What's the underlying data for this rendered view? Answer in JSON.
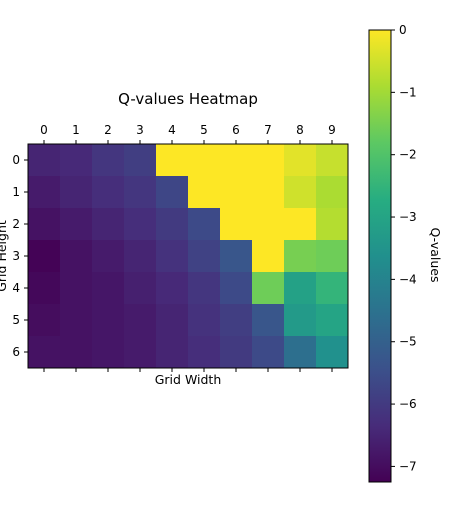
{
  "chart_data": {
    "type": "heatmap",
    "title": "Q-values Heatmap",
    "xlabel": "Grid Width",
    "ylabel": "Grid Height",
    "colorbar_label": "Q-values",
    "colormap": "viridis",
    "x_ticks": [
      "0",
      "1",
      "2",
      "3",
      "4",
      "5",
      "6",
      "7",
      "8",
      "9"
    ],
    "y_ticks": [
      "0",
      "1",
      "2",
      "3",
      "4",
      "5",
      "6"
    ],
    "x_tick_position": "top",
    "vmin": -7.25,
    "vmax": 0,
    "colorbar_ticks": [
      0,
      -1,
      -2,
      -3,
      -4,
      -5,
      -6,
      -7
    ],
    "colorbar_tick_labels": [
      "0",
      "−1",
      "−2",
      "−3",
      "−4",
      "−5",
      "−6",
      "−7"
    ],
    "values": [
      [
        -6.5,
        -6.4,
        -6.1,
        -5.9,
        0.0,
        0.0,
        0.0,
        0.0,
        -0.3,
        -0.6
      ],
      [
        -6.7,
        -6.5,
        -6.3,
        -6.1,
        -5.7,
        0.0,
        0.0,
        0.0,
        -0.5,
        -0.9
      ],
      [
        -6.9,
        -6.7,
        -6.5,
        -6.3,
        -6.0,
        -5.6,
        0.0,
        0.0,
        0.0,
        -0.8
      ],
      [
        -7.2,
        -6.9,
        -6.7,
        -6.5,
        -6.2,
        -5.8,
        -5.3,
        0.0,
        -1.5,
        -1.6
      ],
      [
        -7.1,
        -6.9,
        -6.8,
        -6.6,
        -6.4,
        -6.1,
        -5.6,
        -1.6,
        -3.1,
        -2.5
      ],
      [
        -7.0,
        -6.9,
        -6.8,
        -6.7,
        -6.5,
        -6.2,
        -5.9,
        -5.3,
        -3.3,
        -3.0
      ],
      [
        -6.9,
        -6.9,
        -6.8,
        -6.7,
        -6.5,
        -6.3,
        -6.0,
        -5.6,
        -4.6,
        -3.6
      ]
    ]
  }
}
